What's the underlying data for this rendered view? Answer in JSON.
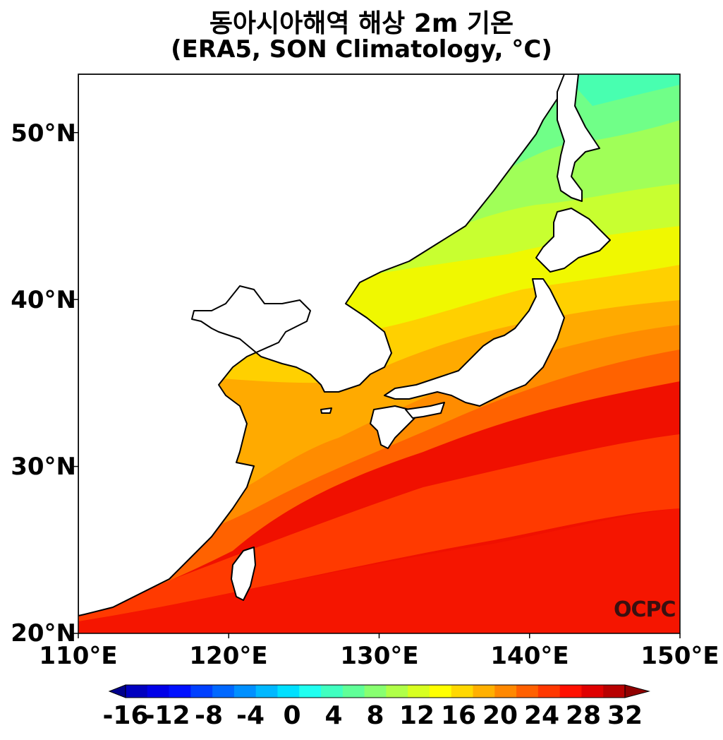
{
  "title_line1": "동아시아해역 해상 2m 기온",
  "title_line2": "(ERA5, SON Climatology, °C)",
  "lat_labels": [
    "50°N",
    "40°N",
    "30°N",
    "20°N"
  ],
  "lon_labels": [
    "110°E",
    "120°E",
    "130°E",
    "140°E",
    "150°E"
  ],
  "extent": {
    "lon": [
      110,
      150
    ],
    "lat": [
      20,
      53.5
    ]
  },
  "colorbar": {
    "labels": [
      "-16",
      "-12",
      "-8",
      "-4",
      "0",
      "4",
      "8",
      "12",
      "16",
      "20",
      "24",
      "28",
      "32"
    ],
    "values": [
      -16,
      -12,
      -8,
      -4,
      0,
      4,
      8,
      12,
      16,
      20,
      24,
      28,
      32
    ],
    "colors": [
      "#00008c",
      "#0000c0",
      "#0000e8",
      "#0010ff",
      "#0040ff",
      "#0068ff",
      "#0090ff",
      "#00b8ff",
      "#00e0ff",
      "#20fff0",
      "#40ffc0",
      "#60ff98",
      "#88ff70",
      "#b0ff48",
      "#d8ff20",
      "#ffff00",
      "#ffd800",
      "#ffb000",
      "#ff8800",
      "#ff6000",
      "#ff3800",
      "#ff1000",
      "#e00000",
      "#b80000",
      "#900000"
    ]
  },
  "logo": "OCPC",
  "colors": {
    "land": "#ffffff",
    "coast": "#000000"
  }
}
